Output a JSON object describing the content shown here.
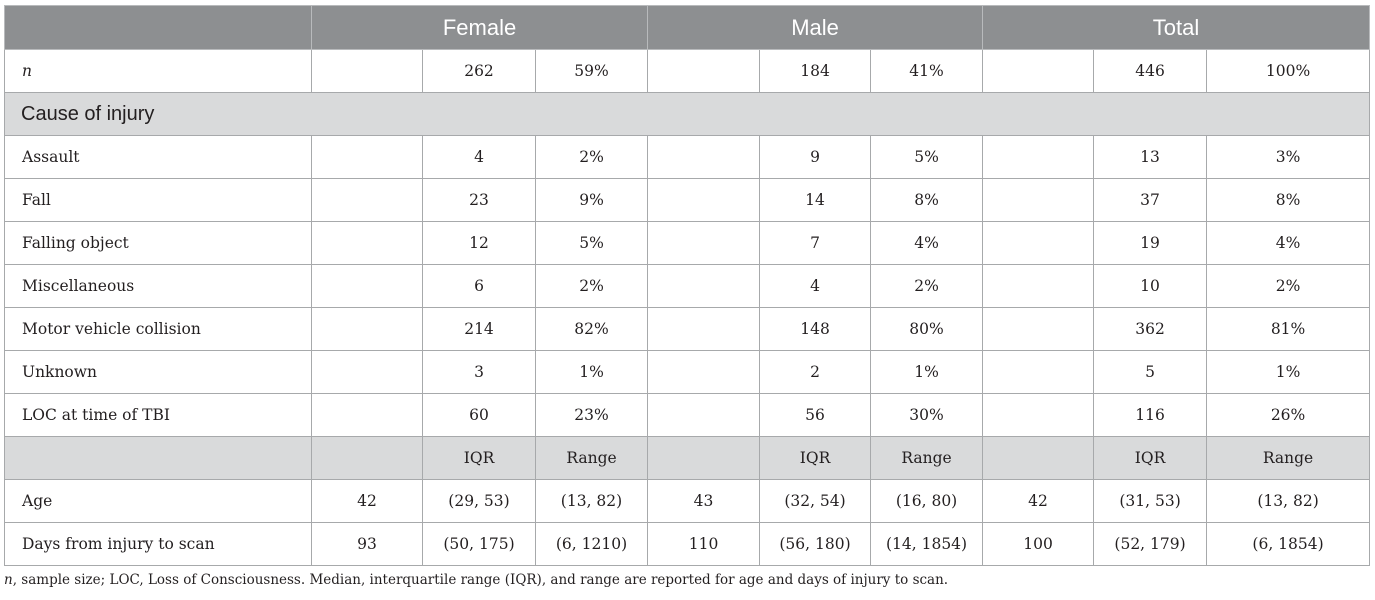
{
  "headers": {
    "female": "Female",
    "male": "Male",
    "total": "Total"
  },
  "n_row": {
    "label": "n",
    "female_n": "262",
    "female_pct": "59%",
    "male_n": "184",
    "male_pct": "41%",
    "total_n": "446",
    "total_pct": "100%"
  },
  "section_title": "Cause of injury",
  "causes": [
    {
      "label": "Assault",
      "f_n": "4",
      "f_pct": "2%",
      "m_n": "9",
      "m_pct": "5%",
      "t_n": "13",
      "t_pct": "3%"
    },
    {
      "label": "Fall",
      "f_n": "23",
      "f_pct": "9%",
      "m_n": "14",
      "m_pct": "8%",
      "t_n": "37",
      "t_pct": "8%"
    },
    {
      "label": "Falling object",
      "f_n": "12",
      "f_pct": "5%",
      "m_n": "7",
      "m_pct": "4%",
      "t_n": "19",
      "t_pct": "4%"
    },
    {
      "label": "Miscellaneous",
      "f_n": "6",
      "f_pct": "2%",
      "m_n": "4",
      "m_pct": "2%",
      "t_n": "10",
      "t_pct": "2%"
    },
    {
      "label": "Motor vehicle collision",
      "f_n": "214",
      "f_pct": "82%",
      "m_n": "148",
      "m_pct": "80%",
      "t_n": "362",
      "t_pct": "81%"
    },
    {
      "label": "Unknown",
      "f_n": "3",
      "f_pct": "1%",
      "m_n": "2",
      "m_pct": "1%",
      "t_n": "5",
      "t_pct": "1%"
    },
    {
      "label": "LOC at time of TBI",
      "f_n": "60",
      "f_pct": "23%",
      "m_n": "56",
      "m_pct": "30%",
      "t_n": "116",
      "t_pct": "26%"
    }
  ],
  "subheaders": {
    "iqr": "IQR",
    "range": "Range"
  },
  "stats": [
    {
      "label": "Age",
      "f_med": "42",
      "f_iqr": "(29, 53)",
      "f_range": "(13, 82)",
      "m_med": "43",
      "m_iqr": "(32, 54)",
      "m_range": "(16, 80)",
      "t_med": "42",
      "t_iqr": "(31, 53)",
      "t_range": "(13, 82)"
    },
    {
      "label": "Days from injury to scan",
      "f_med": "93",
      "f_iqr": "(50, 175)",
      "f_range": "(6, 1210)",
      "m_med": "110",
      "m_iqr": "(56, 180)",
      "m_range": "(14, 1854)",
      "t_med": "100",
      "t_iqr": "(52, 179)",
      "t_range": "(6, 1854)"
    }
  ],
  "footnote": {
    "n_symbol": "n",
    "text": ", sample size; LOC, Loss of Consciousness. Median, interquartile range (IQR), and range are reported for age and days of injury to scan."
  }
}
